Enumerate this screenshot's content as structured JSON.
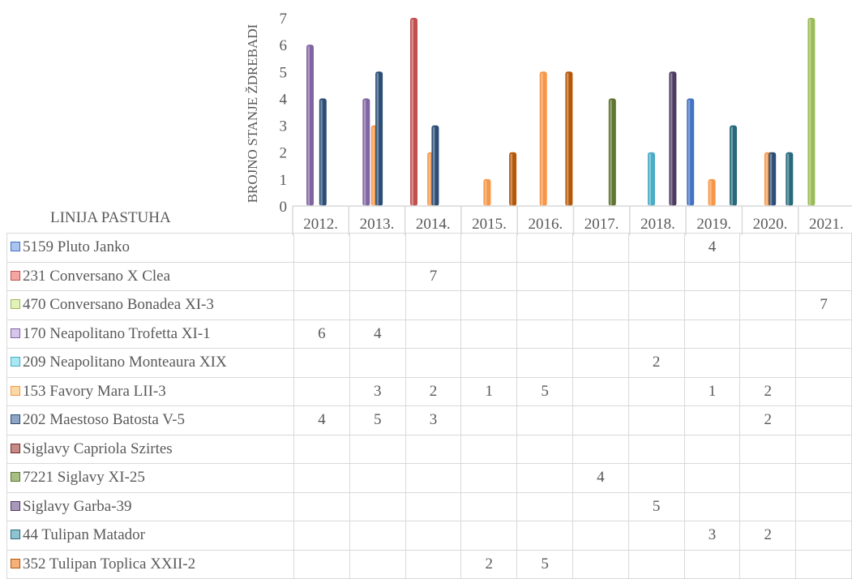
{
  "chart_data": {
    "type": "bar",
    "ylabel": "BROJNO STANJE ŽDREBADI",
    "table_header": "LINIJA PASTUHA",
    "ylim": [
      0,
      7
    ],
    "yticks": [
      "0",
      "1",
      "2",
      "3",
      "4",
      "5",
      "6",
      "7"
    ],
    "categories": [
      "2012.",
      "2013.",
      "2014.",
      "2015.",
      "2016.",
      "2017.",
      "2018.",
      "2019.",
      "2020.",
      "2021."
    ],
    "series": [
      {
        "name": "5159 Pluto Janko",
        "color": "#4472c4",
        "light": "#a9c4ee",
        "values": [
          null,
          null,
          null,
          null,
          null,
          null,
          null,
          4,
          null,
          null
        ]
      },
      {
        "name": "231 Conversano X Clea",
        "color": "#c0504d",
        "light": "#f4a6a3",
        "values": [
          null,
          null,
          7,
          null,
          null,
          null,
          null,
          null,
          null,
          null
        ]
      },
      {
        "name": "470 Conversano Bonadea XI-3",
        "color": "#9bbb59",
        "light": "#e3f2b8",
        "values": [
          null,
          null,
          null,
          null,
          null,
          null,
          null,
          null,
          null,
          7
        ]
      },
      {
        "name": "170 Neapolitano Trofetta XI-1",
        "color": "#8064a2",
        "light": "#d7c6ec",
        "values": [
          6,
          4,
          null,
          null,
          null,
          null,
          null,
          null,
          null,
          null
        ]
      },
      {
        "name": "209 Neapolitano Monteaura XIX",
        "color": "#4bacc6",
        "light": "#a8e8f4",
        "values": [
          null,
          null,
          null,
          null,
          null,
          null,
          2,
          null,
          null,
          null
        ]
      },
      {
        "name": "153 Favory Mara LII-3",
        "color": "#f79646",
        "light": "#fbd9a6",
        "values": [
          null,
          3,
          2,
          1,
          5,
          null,
          null,
          1,
          2,
          null
        ]
      },
      {
        "name": "202 Maestoso Batosta V-5",
        "color": "#2c4d75",
        "light": "#8ea5c6",
        "values": [
          4,
          5,
          3,
          null,
          null,
          null,
          null,
          null,
          2,
          null
        ]
      },
      {
        "name": "Siglavy Capriola Szirtes",
        "color": "#772c2a",
        "light": "#c68a88",
        "values": [
          null,
          null,
          null,
          null,
          null,
          null,
          null,
          null,
          null,
          null
        ]
      },
      {
        "name": "7221 Siglavy XI-25",
        "color": "#5f7530",
        "light": "#a6bd84",
        "values": [
          null,
          null,
          null,
          null,
          null,
          4,
          null,
          null,
          null,
          null
        ]
      },
      {
        "name": "Siglavy Garba-39",
        "color": "#4d3b62",
        "light": "#a898bc",
        "values": [
          null,
          null,
          null,
          null,
          null,
          null,
          5,
          null,
          null,
          null
        ]
      },
      {
        "name": "44 Tulipan Matador",
        "color": "#276a7c",
        "light": "#8ec3d1",
        "values": [
          null,
          null,
          null,
          null,
          null,
          null,
          null,
          3,
          2,
          null
        ]
      },
      {
        "name": "352 Tulipan Toplica XXII-2",
        "color": "#b65708",
        "light": "#f4b27a",
        "values": [
          null,
          null,
          null,
          2,
          5,
          null,
          null,
          null,
          null,
          null
        ]
      }
    ]
  }
}
